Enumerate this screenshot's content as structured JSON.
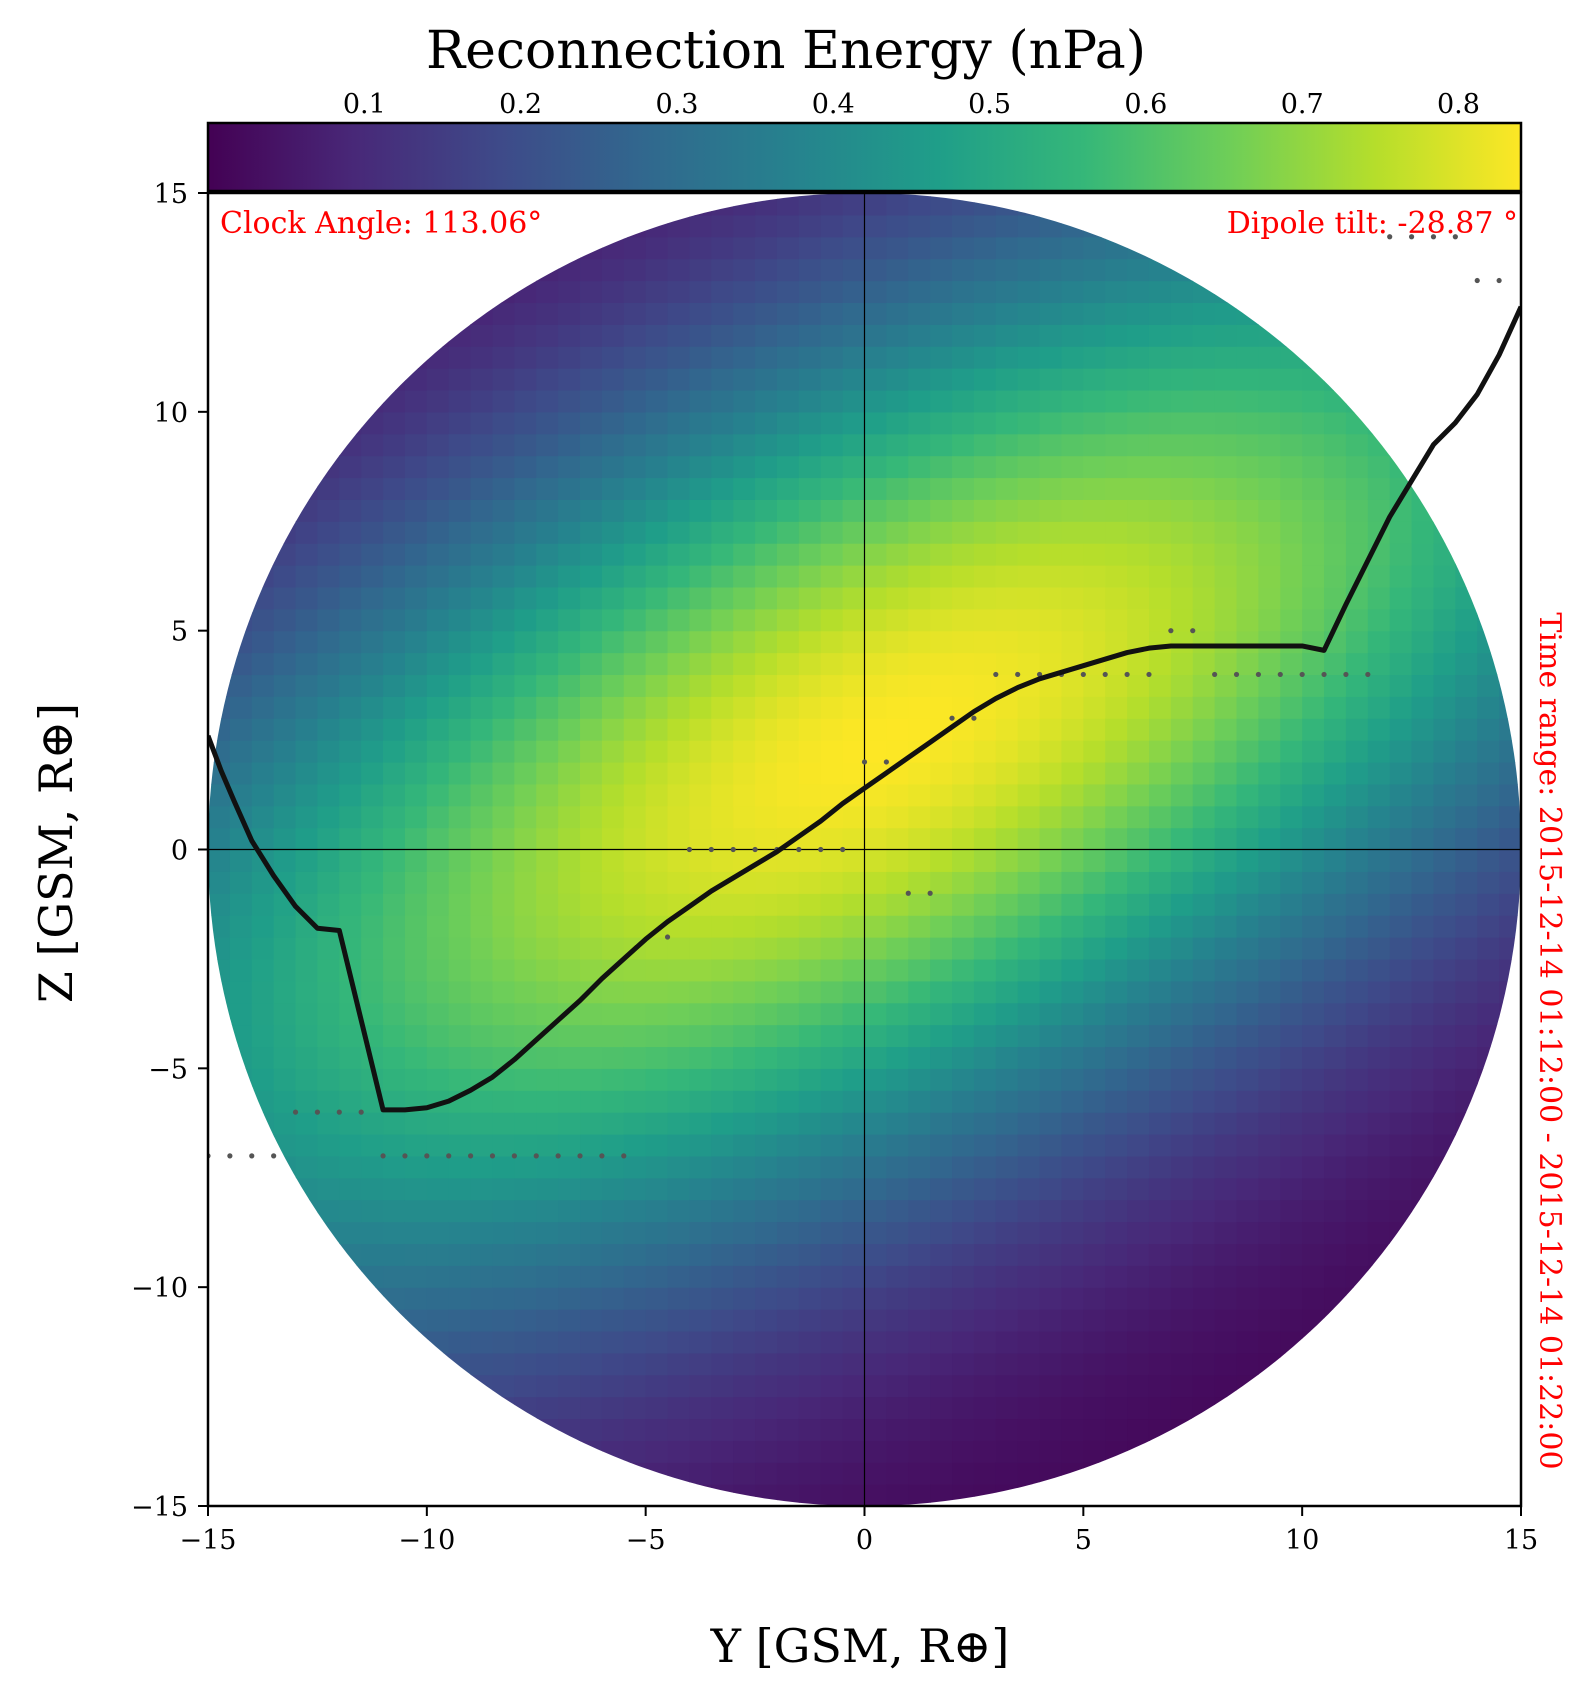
{
  "chart_data": {
    "type": "heatmap",
    "title": "Reconnection Energy (nPa)",
    "xlabel": "Y [GSM, R⊕]",
    "ylabel": "Z [GSM, R⊕]",
    "xlim": [
      -15,
      15
    ],
    "ylim": [
      -15,
      15
    ],
    "x_ticks": [
      "−15",
      "−10",
      "−5",
      "0",
      "5",
      "10",
      "15"
    ],
    "y_ticks": [
      "−15",
      "−10",
      "−5",
      "0",
      "5",
      "10",
      "15"
    ],
    "x_tick_values": [
      -15,
      -10,
      -5,
      0,
      5,
      10,
      15
    ],
    "y_tick_values": [
      -15,
      -10,
      -5,
      0,
      5,
      10,
      15
    ],
    "colorbar": {
      "label": "Reconnection Energy (nPa)",
      "colormap": "viridis",
      "range": [
        0.0,
        0.84
      ],
      "tick_values": [
        0.1,
        0.2,
        0.3,
        0.4,
        0.5,
        0.6,
        0.7,
        0.8
      ],
      "tick_labels": [
        "0.1",
        "0.2",
        "0.3",
        "0.4",
        "0.5",
        "0.6",
        "0.7",
        "0.8"
      ]
    },
    "heatmap_field": {
      "domain": "circle",
      "radius": 15,
      "grid_step": 0.5,
      "ridge_direction_deg": 28,
      "ridge_center": [
        0.5,
        2.5
      ],
      "peak_value": 0.84,
      "min_value": 0.0
    },
    "reconnection_line": {
      "name": "",
      "color": "#111111",
      "points": [
        [
          -15,
          2.6
        ],
        [
          -14.7,
          1.8
        ],
        [
          -14.4,
          1.1
        ],
        [
          -14,
          0.2
        ],
        [
          -13.5,
          -0.6
        ],
        [
          -13,
          -1.3
        ],
        [
          -12.5,
          -1.8
        ],
        [
          -12,
          -1.85
        ],
        [
          -11,
          -5.95
        ],
        [
          -10.5,
          -5.95
        ],
        [
          -10,
          -5.9
        ],
        [
          -9.5,
          -5.75
        ],
        [
          -9,
          -5.5
        ],
        [
          -8.5,
          -5.2
        ],
        [
          -8,
          -4.8
        ],
        [
          -7.5,
          -4.35
        ],
        [
          -7,
          -3.9
        ],
        [
          -6.5,
          -3.45
        ],
        [
          -6,
          -2.95
        ],
        [
          -5.5,
          -2.5
        ],
        [
          -5,
          -2.05
        ],
        [
          -4.5,
          -1.65
        ],
        [
          -4,
          -1.3
        ],
        [
          -3.5,
          -0.95
        ],
        [
          -3,
          -0.65
        ],
        [
          -2.5,
          -0.35
        ],
        [
          -2,
          -0.05
        ],
        [
          -1.5,
          0.3
        ],
        [
          -1,
          0.65
        ],
        [
          -0.5,
          1.05
        ],
        [
          0,
          1.4
        ],
        [
          0.5,
          1.75
        ],
        [
          1,
          2.1
        ],
        [
          1.5,
          2.45
        ],
        [
          2,
          2.8
        ],
        [
          2.5,
          3.15
        ],
        [
          3,
          3.45
        ],
        [
          3.5,
          3.7
        ],
        [
          4,
          3.9
        ],
        [
          5,
          4.2
        ],
        [
          6,
          4.5
        ],
        [
          6.5,
          4.6
        ],
        [
          7,
          4.65
        ],
        [
          10,
          4.65
        ],
        [
          10.5,
          4.55
        ],
        [
          11,
          5.6
        ],
        [
          12,
          7.6
        ],
        [
          13,
          9.25
        ],
        [
          13.5,
          9.75
        ],
        [
          14,
          10.4
        ],
        [
          14.5,
          11.3
        ],
        [
          15,
          12.4
        ]
      ]
    },
    "marker_points": [
      [
        -15,
        -7
      ],
      [
        -14.5,
        -7
      ],
      [
        -14,
        -7
      ],
      [
        -13.5,
        -7
      ],
      [
        -13,
        -6
      ],
      [
        -12.5,
        -6
      ],
      [
        -12,
        -6
      ],
      [
        -11.5,
        -6
      ],
      [
        -11,
        -7
      ],
      [
        -10.5,
        -7
      ],
      [
        -10,
        -7
      ],
      [
        -9.5,
        -7
      ],
      [
        -9,
        -7
      ],
      [
        -8.5,
        -7
      ],
      [
        -8,
        -7
      ],
      [
        -7.5,
        -7
      ],
      [
        -7,
        -7
      ],
      [
        -6.5,
        -7
      ],
      [
        -6,
        -7
      ],
      [
        -5.5,
        -7
      ],
      [
        -4.5,
        -2
      ],
      [
        -4,
        0
      ],
      [
        -3.5,
        0
      ],
      [
        -3,
        0
      ],
      [
        -2.5,
        0
      ],
      [
        -2,
        0
      ],
      [
        -1.5,
        0
      ],
      [
        -1,
        0
      ],
      [
        -0.5,
        0
      ],
      [
        1,
        -1
      ],
      [
        1.5,
        -1
      ],
      [
        0,
        2
      ],
      [
        0.5,
        2
      ],
      [
        2,
        3
      ],
      [
        2.5,
        3
      ],
      [
        3,
        4
      ],
      [
        3.5,
        4
      ],
      [
        4,
        4
      ],
      [
        4.5,
        4
      ],
      [
        5,
        4
      ],
      [
        5.5,
        4
      ],
      [
        6,
        4
      ],
      [
        6.5,
        4
      ],
      [
        7,
        5
      ],
      [
        7.5,
        5
      ],
      [
        8,
        4
      ],
      [
        8.5,
        4
      ],
      [
        9,
        4
      ],
      [
        9.5,
        4
      ],
      [
        10,
        4
      ],
      [
        10.5,
        4
      ],
      [
        11,
        4
      ],
      [
        11.5,
        4
      ],
      [
        12,
        14
      ],
      [
        12.5,
        14
      ],
      [
        13,
        14
      ],
      [
        13.5,
        14
      ],
      [
        14,
        13
      ],
      [
        14.5,
        13
      ]
    ],
    "grid": false,
    "crosshair_lines": [
      {
        "axis": "x",
        "value": 0
      },
      {
        "axis": "y",
        "value": 0
      }
    ]
  },
  "annotations": {
    "clock_angle": "Clock Angle: 113.06°",
    "dipole_tilt": "Dipole tilt: -28.87 °",
    "time_range": "Time range: 2015-12-14 01:12:00 - 2015-12-14 01:22:00"
  },
  "colors": {
    "annotation": "#ff0000",
    "line": "#111111",
    "markers": "#555555"
  }
}
